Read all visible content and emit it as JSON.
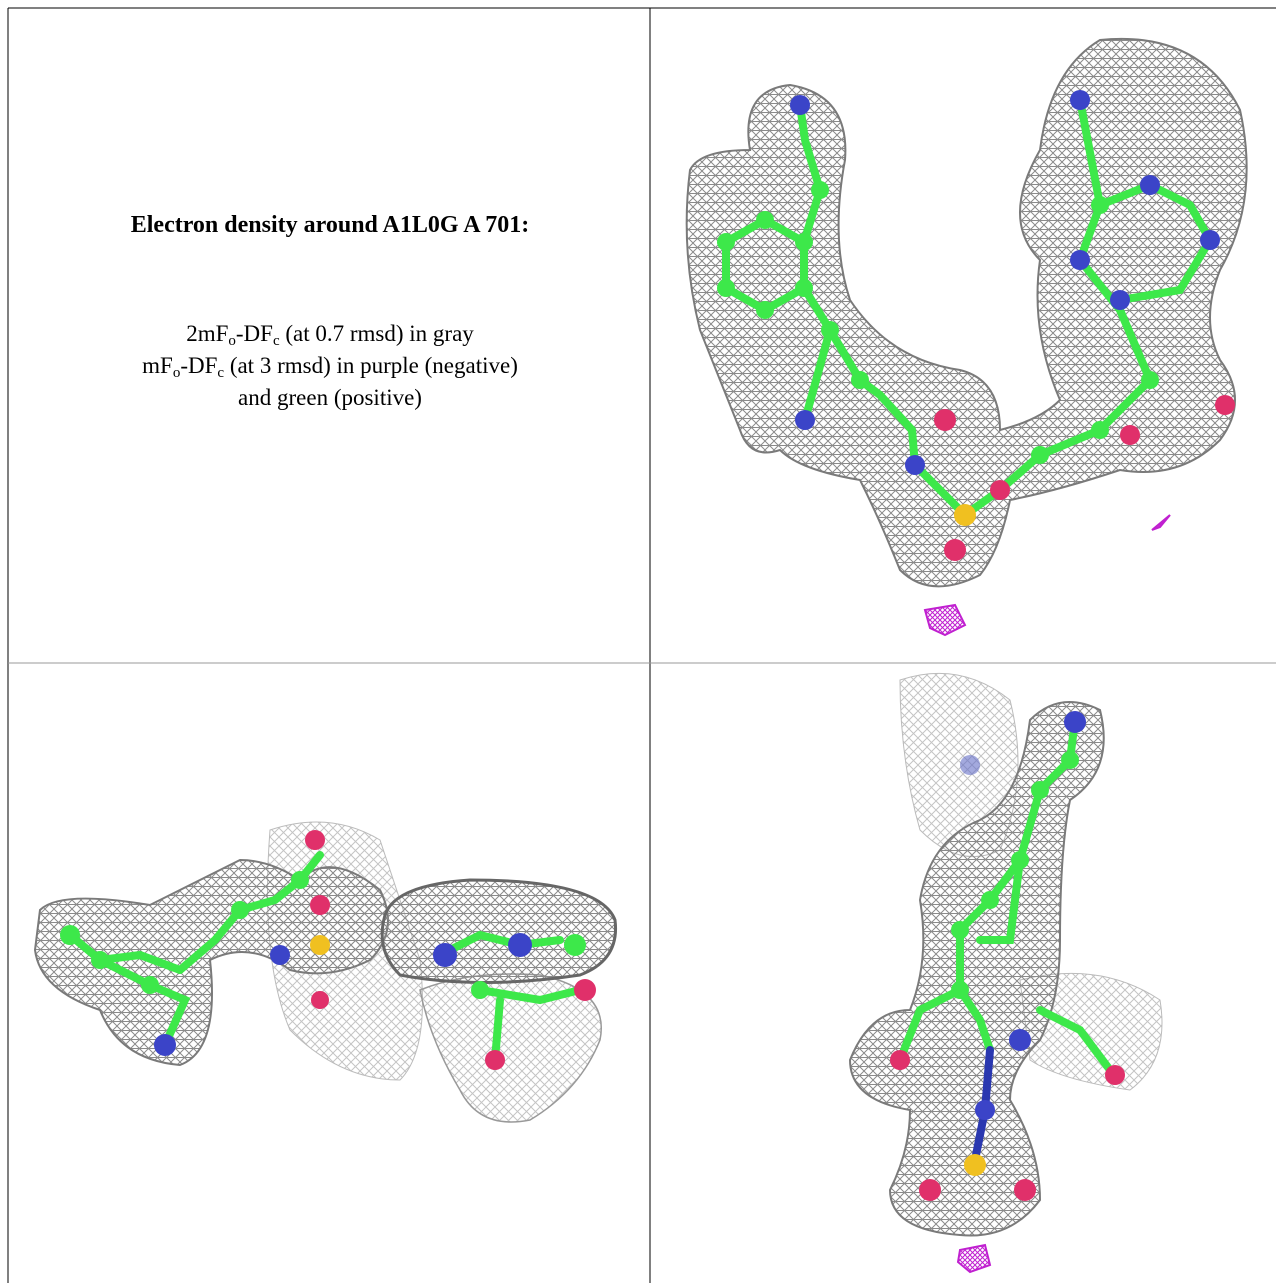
{
  "title": "Electron density around A1L0G A 701:",
  "legend": [
    [
      {
        "text": "2mF"
      },
      {
        "sub": "o"
      },
      {
        "text": "-DF"
      },
      {
        "sub": "c"
      },
      {
        "text": " (at 0.7 rmsd) in gray"
      }
    ],
    [
      {
        "text": "mF"
      },
      {
        "sub": "o"
      },
      {
        "text": "-DF"
      },
      {
        "sub": "c"
      },
      {
        "text": " (at 3 rmsd) in purple (negative)"
      }
    ],
    [
      {
        "text": "and green (positive)"
      }
    ]
  ]
}
